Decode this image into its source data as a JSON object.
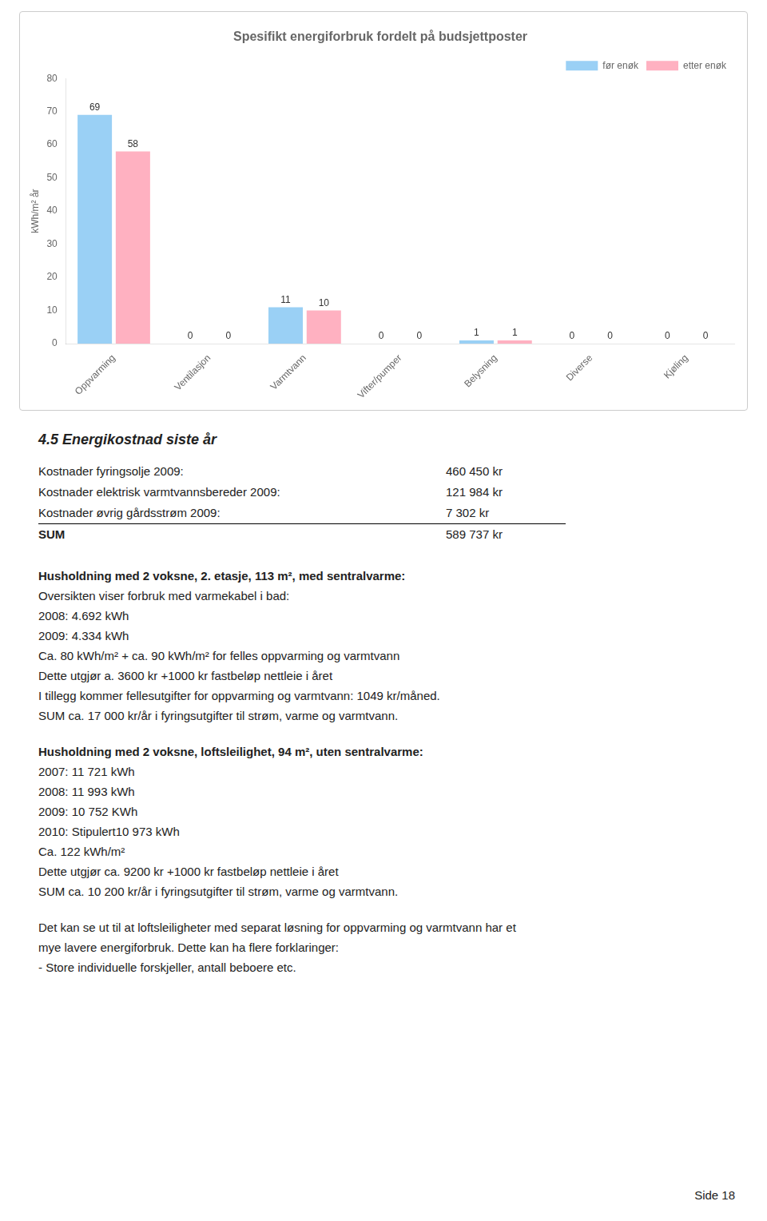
{
  "chart_data": {
    "type": "bar",
    "title": "Spesifikt energiforbruk fordelt på budsjettposter",
    "categories": [
      "Oppvarming",
      "Ventilasjon",
      "Varmtvann",
      "Vifter/pumper",
      "Belysning",
      "Diverse",
      "Kjøling"
    ],
    "series": [
      {
        "name": "før enøk",
        "values": [
          69,
          0,
          11,
          0,
          1,
          0,
          0
        ]
      },
      {
        "name": "etter enøk",
        "values": [
          58,
          0,
          10,
          0,
          1,
          0,
          0
        ]
      }
    ],
    "ylabel": "kWh/m² år",
    "ylim": [
      0,
      80
    ],
    "yticks": [
      0,
      10,
      20,
      30,
      40,
      50,
      60,
      70,
      80
    ],
    "grid": false,
    "legend": "upper right",
    "data_labels": true
  },
  "section_title": "4.5  Energikostnad siste år",
  "table_rows": [
    {
      "label": "Kostnader fyringsolje 2009:",
      "value": "460 450 kr"
    },
    {
      "label": "Kostnader elektrisk varmtvannsbereder 2009:",
      "value": "121 984 kr"
    },
    {
      "label": "Kostnader øvrig gårdsstrøm 2009:",
      "value": "7 302 kr"
    }
  ],
  "sum_label": "SUM",
  "sum_value": "589 737 kr",
  "para1_bold": "Husholdning med 2 voksne, 2. etasje, 113 m², med sentralvarme:",
  "para1_lines": [
    "Oversikten viser forbruk med varmekabel i bad:",
    "2008: 4.692 kWh",
    "2009: 4.334 kWh",
    "Ca. 80 kWh/m² + ca. 90 kWh/m² for felles oppvarming og varmtvann",
    "Dette utgjør a. 3600 kr +1000 kr fastbeløp nettleie i året",
    "I tillegg kommer fellesutgifter for oppvarming og varmtvann: 1049 kr/måned.",
    "SUM ca. 17 000 kr/år i fyringsutgifter til strøm, varme og varmtvann."
  ],
  "para2_bold": "Husholdning med 2 voksne, loftsleilighet, 94 m², uten sentralvarme:",
  "para2_lines": [
    "2007: 11 721 kWh",
    "2008: 11 993 kWh",
    "2009: 10 752 KWh",
    "2010: Stipulert10 973 kWh",
    "Ca. 122 kWh/m²",
    "Dette utgjør ca. 9200 kr +1000 kr fastbeløp nettleie i året",
    "SUM ca. 10 200 kr/år i fyringsutgifter til strøm, varme og varmtvann."
  ],
  "para3_lines": [
    "Det kan se ut til at loftsleiligheter med separat løsning for oppvarming og varmtvann har et",
    "mye lavere energiforbruk. Dette kan ha flere forklaringer:",
    "- Store individuelle forskjeller, antall beboere etc."
  ],
  "footer": "Side 18"
}
